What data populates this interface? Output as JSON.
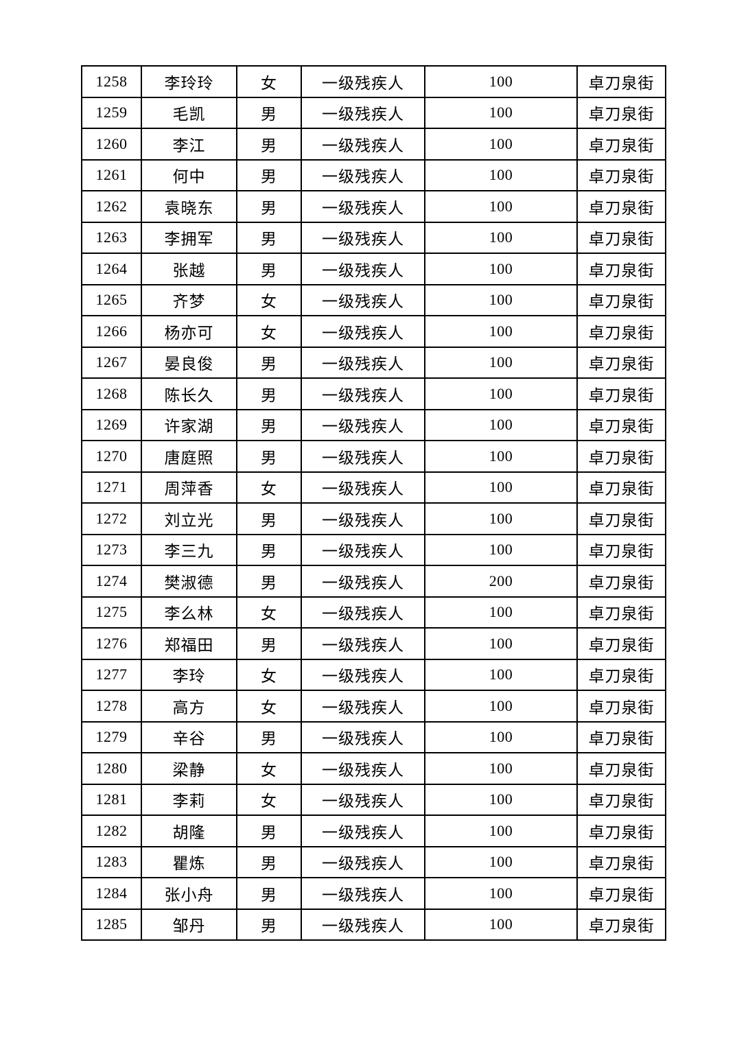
{
  "table": {
    "rows": [
      [
        "1258",
        "李玲玲",
        "女",
        "一级残疾人",
        "100",
        "卓刀泉街"
      ],
      [
        "1259",
        "毛凯",
        "男",
        "一级残疾人",
        "100",
        "卓刀泉街"
      ],
      [
        "1260",
        "李江",
        "男",
        "一级残疾人",
        "100",
        "卓刀泉街"
      ],
      [
        "1261",
        "何中",
        "男",
        "一级残疾人",
        "100",
        "卓刀泉街"
      ],
      [
        "1262",
        "袁晓东",
        "男",
        "一级残疾人",
        "100",
        "卓刀泉街"
      ],
      [
        "1263",
        "李拥军",
        "男",
        "一级残疾人",
        "100",
        "卓刀泉街"
      ],
      [
        "1264",
        "张越",
        "男",
        "一级残疾人",
        "100",
        "卓刀泉街"
      ],
      [
        "1265",
        "齐梦",
        "女",
        "一级残疾人",
        "100",
        "卓刀泉街"
      ],
      [
        "1266",
        "杨亦可",
        "女",
        "一级残疾人",
        "100",
        "卓刀泉街"
      ],
      [
        "1267",
        "晏良俊",
        "男",
        "一级残疾人",
        "100",
        "卓刀泉街"
      ],
      [
        "1268",
        "陈长久",
        "男",
        "一级残疾人",
        "100",
        "卓刀泉街"
      ],
      [
        "1269",
        "许家湖",
        "男",
        "一级残疾人",
        "100",
        "卓刀泉街"
      ],
      [
        "1270",
        "唐庭照",
        "男",
        "一级残疾人",
        "100",
        "卓刀泉街"
      ],
      [
        "1271",
        "周萍香",
        "女",
        "一级残疾人",
        "100",
        "卓刀泉街"
      ],
      [
        "1272",
        "刘立光",
        "男",
        "一级残疾人",
        "100",
        "卓刀泉街"
      ],
      [
        "1273",
        "李三九",
        "男",
        "一级残疾人",
        "100",
        "卓刀泉街"
      ],
      [
        "1274",
        "樊淑德",
        "男",
        "一级残疾人",
        "200",
        "卓刀泉街"
      ],
      [
        "1275",
        "李么林",
        "女",
        "一级残疾人",
        "100",
        "卓刀泉街"
      ],
      [
        "1276",
        "郑福田",
        "男",
        "一级残疾人",
        "100",
        "卓刀泉街"
      ],
      [
        "1277",
        "李玲",
        "女",
        "一级残疾人",
        "100",
        "卓刀泉街"
      ],
      [
        "1278",
        "高方",
        "女",
        "一级残疾人",
        "100",
        "卓刀泉街"
      ],
      [
        "1279",
        "辛谷",
        "男",
        "一级残疾人",
        "100",
        "卓刀泉街"
      ],
      [
        "1280",
        "梁静",
        "女",
        "一级残疾人",
        "100",
        "卓刀泉街"
      ],
      [
        "1281",
        "李莉",
        "女",
        "一级残疾人",
        "100",
        "卓刀泉街"
      ],
      [
        "1282",
        "胡隆",
        "男",
        "一级残疾人",
        "100",
        "卓刀泉街"
      ],
      [
        "1283",
        "瞿炼",
        "男",
        "一级残疾人",
        "100",
        "卓刀泉街"
      ],
      [
        "1284",
        "张小舟",
        "男",
        "一级残疾人",
        "100",
        "卓刀泉街"
      ],
      [
        "1285",
        "邹丹",
        "男",
        "一级残疾人",
        "100",
        "卓刀泉街"
      ]
    ]
  }
}
